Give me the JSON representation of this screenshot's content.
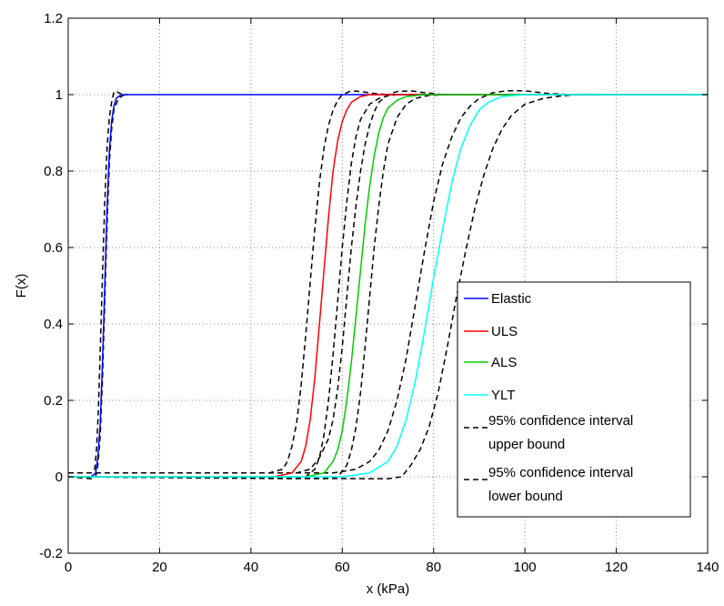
{
  "chart_data": {
    "type": "line",
    "xlabel": "x (kPa)",
    "ylabel": "F(x)",
    "xlim": [
      0,
      140
    ],
    "ylim": [
      -0.2,
      1.2
    ],
    "xticks": [
      0,
      20,
      40,
      60,
      80,
      100,
      120,
      140
    ],
    "yticks": [
      -0.2,
      0,
      0.2,
      0.4,
      0.6,
      0.8,
      1,
      1.2
    ],
    "xtick_labels": [
      "0",
      "20",
      "40",
      "60",
      "80",
      "100",
      "120",
      "140"
    ],
    "ytick_labels": [
      "-0.2",
      "0",
      "0.2",
      "0.4",
      "0.6",
      "0.8",
      "1",
      "1.2"
    ],
    "grid": true,
    "legend_position": "right",
    "legend": [
      {
        "label": "Elastic",
        "color": "#0000ff",
        "dash": false
      },
      {
        "label": "ULS",
        "color": "#ff0000",
        "dash": false
      },
      {
        "label": "ALS",
        "color": "#00cc00",
        "dash": false
      },
      {
        "label": "YLT",
        "color": "#00ffff",
        "dash": false
      },
      {
        "label": "95% confidence interval upper bound",
        "lines": [
          "95% confidence interval",
          "upper bound"
        ],
        "color": "#000000",
        "dash": true
      },
      {
        "label": "95% confidence interval lower bound",
        "lines": [
          "95% confidence interval",
          "lower bound"
        ],
        "color": "#000000",
        "dash": true
      }
    ],
    "series": [
      {
        "name": "Elastic",
        "color": "#0000ff",
        "dash": false,
        "x": [
          0,
          5,
          6,
          6.5,
          7,
          7.5,
          8,
          8.5,
          9,
          9.5,
          10,
          10.5,
          11,
          12,
          13,
          20,
          40,
          60,
          80,
          100,
          120,
          140
        ],
        "y": [
          0,
          0,
          0.01,
          0.05,
          0.14,
          0.3,
          0.5,
          0.7,
          0.85,
          0.93,
          0.97,
          0.99,
          0.995,
          1,
          1,
          1,
          1,
          1,
          1,
          1,
          1,
          1
        ]
      },
      {
        "name": "ULS",
        "color": "#ff0000",
        "dash": false,
        "x": [
          0,
          45,
          49,
          51,
          52,
          53,
          54,
          55,
          56,
          57,
          58,
          59,
          60,
          61,
          62,
          64,
          66,
          70,
          80,
          140
        ],
        "y": [
          0,
          0,
          0.01,
          0.04,
          0.08,
          0.15,
          0.26,
          0.4,
          0.54,
          0.68,
          0.8,
          0.88,
          0.93,
          0.96,
          0.98,
          0.995,
          1,
          1,
          1,
          1
        ]
      },
      {
        "name": "ALS",
        "color": "#00cc00",
        "dash": false,
        "x": [
          0,
          52,
          56,
          58,
          59,
          60,
          61,
          62,
          63,
          64,
          65,
          66,
          67,
          68,
          69,
          70,
          72,
          74,
          78,
          85,
          140
        ],
        "y": [
          0,
          0,
          0.01,
          0.04,
          0.07,
          0.12,
          0.2,
          0.3,
          0.42,
          0.54,
          0.66,
          0.76,
          0.84,
          0.9,
          0.94,
          0.965,
          0.985,
          0.995,
          1,
          1,
          1
        ]
      },
      {
        "name": "YLT",
        "color": "#00ffff",
        "dash": false,
        "x": [
          0,
          60,
          66,
          70,
          72,
          74,
          76,
          78,
          80,
          82,
          84,
          86,
          88,
          90,
          92,
          95,
          100,
          110,
          140
        ],
        "y": [
          0,
          0,
          0.01,
          0.04,
          0.08,
          0.15,
          0.25,
          0.38,
          0.52,
          0.65,
          0.77,
          0.86,
          0.92,
          0.96,
          0.98,
          0.995,
          1,
          1,
          1
        ]
      },
      {
        "name": "95% confidence interval upper bound",
        "color": "#000000",
        "dash": true,
        "x": [
          0,
          5,
          5.8,
          6.2,
          6.6,
          7,
          7.5,
          8,
          8.5,
          9,
          9.5,
          10,
          10.5,
          11,
          12,
          13
        ],
        "y": [
          0.01,
          0.01,
          0.02,
          0.07,
          0.17,
          0.33,
          0.53,
          0.72,
          0.86,
          0.94,
          0.98,
          1.005,
          1.01,
          1.005,
          1.0,
          1.0
        ]
      },
      {
        "name": "95% confidence interval lower bound",
        "color": "#000000",
        "dash": true,
        "x": [
          0,
          5,
          6,
          6.5,
          7,
          7.5,
          8,
          8.5,
          9,
          9.5,
          10,
          11,
          12,
          13
        ],
        "y": [
          0,
          -0.005,
          0.0,
          0.03,
          0.11,
          0.26,
          0.46,
          0.66,
          0.82,
          0.91,
          0.96,
          0.99,
          0.998,
          1.0
        ]
      },
      {
        "name": "95% confidence interval upper bound",
        "color": "#000000",
        "dash": true,
        "x": [
          0,
          44,
          47,
          48,
          49,
          50,
          51,
          52,
          53,
          54,
          55,
          56,
          57,
          58,
          59,
          60,
          62,
          64,
          67,
          70,
          75
        ],
        "y": [
          0.01,
          0.01,
          0.02,
          0.04,
          0.08,
          0.14,
          0.24,
          0.37,
          0.51,
          0.65,
          0.77,
          0.86,
          0.92,
          0.96,
          0.985,
          1.0,
          1.01,
          1.008,
          1.003,
          1.0,
          1.0
        ]
      },
      {
        "name": "95% confidence interval lower bound",
        "color": "#000000",
        "dash": true,
        "x": [
          0,
          50,
          52,
          54,
          55,
          56,
          57,
          58,
          59,
          60,
          61,
          62,
          63,
          64,
          66,
          68,
          70,
          72,
          76,
          80
        ],
        "y": [
          0,
          -0.005,
          0,
          0.02,
          0.05,
          0.11,
          0.2,
          0.32,
          0.46,
          0.6,
          0.72,
          0.82,
          0.89,
          0.935,
          0.975,
          0.99,
          0.997,
          1.0,
          1.0,
          1.0
        ]
      },
      {
        "name": "95% confidence interval upper bound",
        "color": "#000000",
        "dash": true,
        "x": [
          0,
          50,
          53,
          55,
          57,
          58,
          59,
          60,
          61,
          62,
          63,
          64,
          65,
          66,
          67,
          68,
          70,
          72,
          75,
          78,
          82
        ],
        "y": [
          0.01,
          0.01,
          0.02,
          0.05,
          0.1,
          0.15,
          0.23,
          0.34,
          0.47,
          0.6,
          0.71,
          0.8,
          0.87,
          0.92,
          0.955,
          0.98,
          1.0,
          1.008,
          1.01,
          1.005,
          1.0
        ]
      },
      {
        "name": "95% confidence interval lower bound",
        "color": "#000000",
        "dash": true,
        "x": [
          0,
          56,
          59,
          61,
          62,
          63,
          64,
          65,
          66,
          67,
          68,
          69,
          70,
          72,
          74,
          76,
          79,
          83,
          87
        ],
        "y": [
          0,
          -0.005,
          0,
          0.03,
          0.07,
          0.13,
          0.22,
          0.34,
          0.47,
          0.6,
          0.71,
          0.8,
          0.87,
          0.94,
          0.975,
          0.99,
          0.998,
          1.0,
          1.0
        ]
      },
      {
        "name": "95% confidence interval upper bound",
        "color": "#000000",
        "dash": true,
        "x": [
          0,
          58,
          63,
          66,
          68,
          70,
          72,
          74,
          76,
          78,
          80,
          82,
          84,
          86,
          88,
          90,
          93,
          96,
          100,
          105,
          110
        ],
        "y": [
          0.01,
          0.01,
          0.02,
          0.04,
          0.07,
          0.12,
          0.2,
          0.31,
          0.45,
          0.59,
          0.72,
          0.82,
          0.89,
          0.94,
          0.97,
          0.99,
          1.005,
          1.01,
          1.01,
          1.003,
          1.0
        ]
      },
      {
        "name": "95% confidence interval lower bound",
        "color": "#000000",
        "dash": true,
        "x": [
          0,
          65,
          70,
          73,
          75,
          77,
          79,
          81,
          83,
          85,
          87,
          89,
          91,
          93,
          95,
          97,
          100,
          104,
          108,
          112,
          117
        ],
        "y": [
          0,
          -0.005,
          -0.005,
          0,
          0.03,
          0.07,
          0.13,
          0.22,
          0.34,
          0.47,
          0.59,
          0.7,
          0.79,
          0.86,
          0.91,
          0.945,
          0.975,
          0.99,
          0.997,
          1.0,
          1.0
        ]
      }
    ]
  }
}
